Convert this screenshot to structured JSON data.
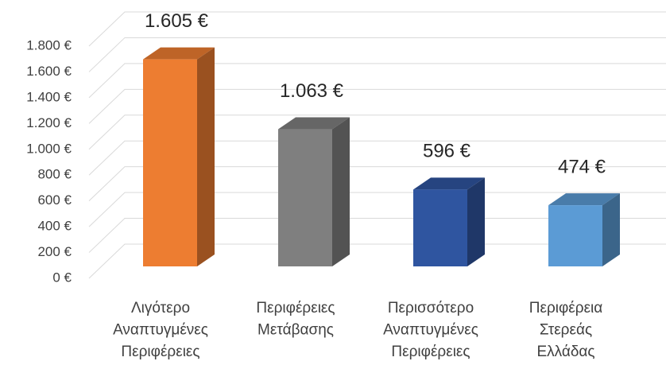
{
  "chart_data": {
    "type": "bar3d",
    "categories": [
      "Λιγότερο Αναπτυγμένες Περιφέρειες",
      "Περιφέρειες Μετάβασης",
      "Περισσότερο Αναπτυγμένες Περιφέρειες",
      "Περιφέρεια Στερεάς Ελλάδας"
    ],
    "values": [
      1605,
      1063,
      596,
      474
    ],
    "value_labels": [
      "1.605 €",
      "1.063 €",
      "596 €",
      "474 €"
    ],
    "colors": [
      "#ed7d31",
      "#7f7f7f",
      "#2f55a0",
      "#5b9bd5"
    ],
    "ylim": [
      0,
      1800
    ],
    "yticks": [
      {
        "value": 0,
        "label": "0 €"
      },
      {
        "value": 200,
        "label": "200 €"
      },
      {
        "value": 400,
        "label": "400 €"
      },
      {
        "value": 600,
        "label": "600 €"
      },
      {
        "value": 800,
        "label": "800 €"
      },
      {
        "value": 1000,
        "label": "1.000 €"
      },
      {
        "value": 1200,
        "label": "1.200 €"
      },
      {
        "value": 1400,
        "label": "1.400 €"
      },
      {
        "value": 1600,
        "label": "1.600 €"
      },
      {
        "value": 1800,
        "label": "1.800 €"
      }
    ],
    "grid": true
  }
}
